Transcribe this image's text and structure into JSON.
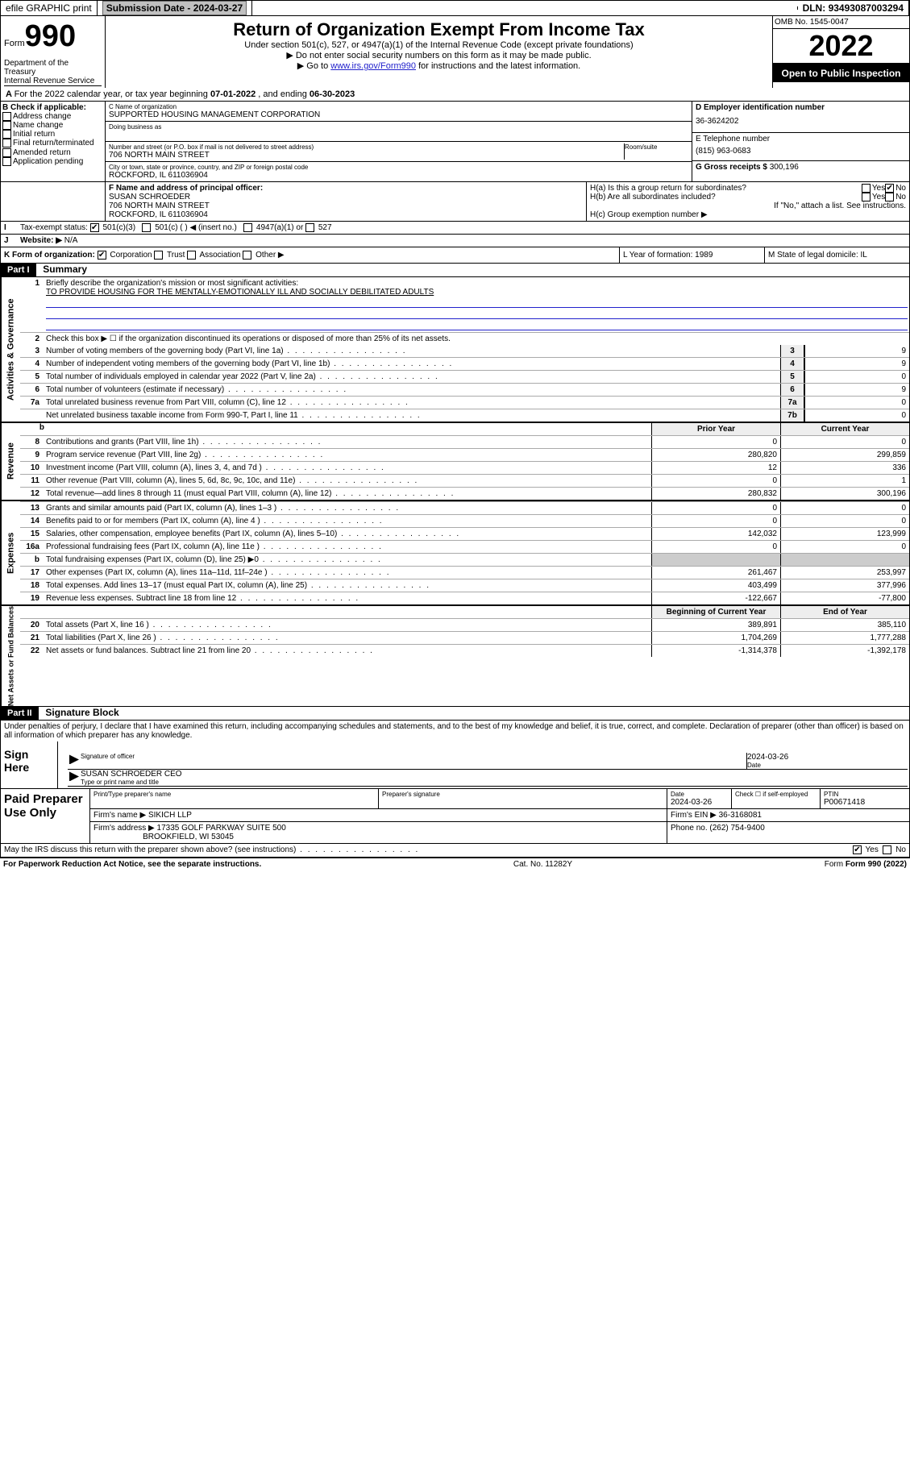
{
  "topbar": {
    "efile": "efile GRAPHIC print",
    "subdate_label": "Submission Date - ",
    "subdate": "2024-03-27",
    "dln_label": "DLN: ",
    "dln": "93493087003294"
  },
  "header": {
    "form_word": "Form",
    "form_num": "990",
    "title": "Return of Organization Exempt From Income Tax",
    "sub1": "Under section 501(c), 527, or 4947(a)(1) of the Internal Revenue Code (except private foundations)",
    "sub2": "▶ Do not enter social security numbers on this form as it may be made public.",
    "sub3_pre": "▶ Go to ",
    "sub3_link": "www.irs.gov/Form990",
    "sub3_post": " for instructions and the latest information.",
    "omb": "OMB No. 1545-0047",
    "year": "2022",
    "open": "Open to Public Inspection",
    "dept": "Department of the Treasury",
    "irs": "Internal Revenue Service"
  },
  "lineA": {
    "pre": "For the 2022 calendar year, or tax year beginning ",
    "begin": "07-01-2022",
    "mid": " , and ending ",
    "end": "06-30-2023"
  },
  "boxB": {
    "label": "B Check if applicable:",
    "items": [
      "Address change",
      "Name change",
      "Initial return",
      "Final return/terminated",
      "Amended return",
      "Application pending"
    ]
  },
  "boxC": {
    "name_label": "C Name of organization",
    "name": "SUPPORTED HOUSING MANAGEMENT CORPORATION",
    "dba_label": "Doing business as",
    "addr_label": "Number and street (or P.O. box if mail is not delivered to street address)",
    "room_label": "Room/suite",
    "addr": "706 NORTH MAIN STREET",
    "city_label": "City or town, state or province, country, and ZIP or foreign postal code",
    "city": "ROCKFORD, IL  611036904"
  },
  "boxD": {
    "label": "D Employer identification number",
    "val": "36-3624202"
  },
  "boxE": {
    "label": "E Telephone number",
    "val": "(815) 963-0683"
  },
  "boxG": {
    "label": "G Gross receipts $ ",
    "val": "300,196"
  },
  "boxF": {
    "label": "F Name and address of principal officer:",
    "name": "SUSAN SCHROEDER",
    "addr": "706 NORTH MAIN STREET",
    "city": "ROCKFORD, IL  611036904"
  },
  "boxH": {
    "a": "H(a)  Is this a group return for subordinates?",
    "b": "H(b)  Are all subordinates included?",
    "note": "If \"No,\" attach a list. See instructions.",
    "c": "H(c)  Group exemption number ▶",
    "yes": "Yes",
    "no": "No"
  },
  "lineI": {
    "label": "Tax-exempt status:",
    "c3": "501(c)(3)",
    "c": "501(c) (   ) ◀ (insert no.)",
    "a1": "4947(a)(1) or",
    "527": "527"
  },
  "lineJ": {
    "label": "Website: ▶",
    "val": "N/A"
  },
  "lineK": {
    "label": "K Form of organization:",
    "corp": "Corporation",
    "trust": "Trust",
    "assoc": "Association",
    "other": "Other ▶"
  },
  "lineL": {
    "label": "L Year of formation: ",
    "val": "1989"
  },
  "lineM": {
    "label": "M State of legal domicile: ",
    "val": "IL"
  },
  "part1": {
    "hdr": "Part I",
    "title": "Summary",
    "l1": "Briefly describe the organization's mission or most significant activities:",
    "mission": "TO PROVIDE HOUSING FOR THE MENTALLY-EMOTIONALLY ILL AND SOCIALLY DEBILITATED ADULTS",
    "l2": "Check this box ▶ ☐  if the organization discontinued its operations or disposed of more than 25% of its net assets.",
    "rows_gov": [
      {
        "n": "3",
        "d": "Number of voting members of the governing body (Part VI, line 1a)",
        "b": "3",
        "v": "9"
      },
      {
        "n": "4",
        "d": "Number of independent voting members of the governing body (Part VI, line 1b)",
        "b": "4",
        "v": "9"
      },
      {
        "n": "5",
        "d": "Total number of individuals employed in calendar year 2022 (Part V, line 2a)",
        "b": "5",
        "v": "0"
      },
      {
        "n": "6",
        "d": "Total number of volunteers (estimate if necessary)",
        "b": "6",
        "v": "9"
      },
      {
        "n": "7a",
        "d": "Total unrelated business revenue from Part VIII, column (C), line 12",
        "b": "7a",
        "v": "0"
      },
      {
        "n": "",
        "d": "Net unrelated business taxable income from Form 990-T, Part I, line 11",
        "b": "7b",
        "v": "0"
      }
    ],
    "hdrs": {
      "b": "b",
      "prior": "Prior Year",
      "curr": "Current Year"
    },
    "rows_rev": [
      {
        "n": "8",
        "d": "Contributions and grants (Part VIII, line 1h)",
        "p": "0",
        "c": "0"
      },
      {
        "n": "9",
        "d": "Program service revenue (Part VIII, line 2g)",
        "p": "280,820",
        "c": "299,859"
      },
      {
        "n": "10",
        "d": "Investment income (Part VIII, column (A), lines 3, 4, and 7d )",
        "p": "12",
        "c": "336"
      },
      {
        "n": "11",
        "d": "Other revenue (Part VIII, column (A), lines 5, 6d, 8c, 9c, 10c, and 11e)",
        "p": "0",
        "c": "1"
      },
      {
        "n": "12",
        "d": "Total revenue—add lines 8 through 11 (must equal Part VIII, column (A), line 12)",
        "p": "280,832",
        "c": "300,196"
      }
    ],
    "rows_exp": [
      {
        "n": "13",
        "d": "Grants and similar amounts paid (Part IX, column (A), lines 1–3 )",
        "p": "0",
        "c": "0"
      },
      {
        "n": "14",
        "d": "Benefits paid to or for members (Part IX, column (A), line 4 )",
        "p": "0",
        "c": "0"
      },
      {
        "n": "15",
        "d": "Salaries, other compensation, employee benefits (Part IX, column (A), lines 5–10)",
        "p": "142,032",
        "c": "123,999"
      },
      {
        "n": "16a",
        "d": "Professional fundraising fees (Part IX, column (A), line 11e )",
        "p": "0",
        "c": "0"
      },
      {
        "n": "b",
        "d": "Total fundraising expenses (Part IX, column (D), line 25) ▶0",
        "p": "",
        "c": ""
      },
      {
        "n": "17",
        "d": "Other expenses (Part IX, column (A), lines 11a–11d, 11f–24e )",
        "p": "261,467",
        "c": "253,997"
      },
      {
        "n": "18",
        "d": "Total expenses. Add lines 13–17 (must equal Part IX, column (A), line 25)",
        "p": "403,499",
        "c": "377,996"
      },
      {
        "n": "19",
        "d": "Revenue less expenses. Subtract line 18 from line 12",
        "p": "-122,667",
        "c": "-77,800"
      }
    ],
    "hdrs2": {
      "prior": "Beginning of Current Year",
      "curr": "End of Year"
    },
    "rows_net": [
      {
        "n": "20",
        "d": "Total assets (Part X, line 16 )",
        "p": "389,891",
        "c": "385,110"
      },
      {
        "n": "21",
        "d": "Total liabilities (Part X, line 26 )",
        "p": "1,704,269",
        "c": "1,777,288"
      },
      {
        "n": "22",
        "d": "Net assets or fund balances. Subtract line 21 from line 20",
        "p": "-1,314,378",
        "c": "-1,392,178"
      }
    ],
    "vtabs": {
      "gov": "Activities & Governance",
      "rev": "Revenue",
      "exp": "Expenses",
      "net": "Net Assets or Fund Balances"
    }
  },
  "part2": {
    "hdr": "Part II",
    "title": "Signature Block",
    "penalties": "Under penalties of perjury, I declare that I have examined this return, including accompanying schedules and statements, and to the best of my knowledge and belief, it is true, correct, and complete. Declaration of preparer (other than officer) is based on all information of which preparer has any knowledge.",
    "sign_here": "Sign Here",
    "sig_officer": "Signature of officer",
    "date": "Date",
    "sig_date": "2024-03-26",
    "officer": "SUSAN SCHROEDER  CEO",
    "type_name": "Type or print name and title",
    "paid": "Paid Preparer Use Only",
    "pp_name_l": "Print/Type preparer's name",
    "pp_sig_l": "Preparer's signature",
    "pp_date_l": "Date",
    "pp_date": "2024-03-26",
    "pp_check_l": "Check ☐ if self-employed",
    "ptin_l": "PTIN",
    "ptin": "P00671418",
    "firm_name_l": "Firm's name  ▶ ",
    "firm_name": "SIKICH LLP",
    "firm_ein_l": "Firm's EIN ▶ ",
    "firm_ein": "36-3168081",
    "firm_addr_l": "Firm's address ▶ ",
    "firm_addr": "17335 GOLF PARKWAY SUITE 500",
    "firm_city": "BROOKFIELD, WI  53045",
    "phone_l": "Phone no. ",
    "phone": "(262) 754-9400",
    "discuss": "May the IRS discuss this return with the preparer shown above? (see instructions)",
    "yes": "Yes",
    "no": "No"
  },
  "footer": {
    "pra": "For Paperwork Reduction Act Notice, see the separate instructions.",
    "cat": "Cat. No. 11282Y",
    "form": "Form 990 (2022)"
  },
  "colors": {
    "link": "#2222cc",
    "shade": "#eeeeee"
  }
}
